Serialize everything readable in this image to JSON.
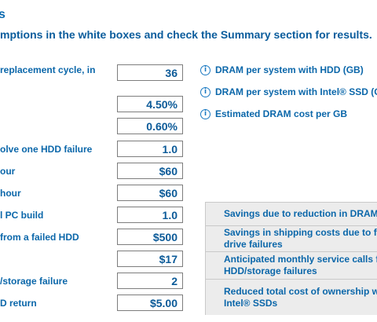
{
  "header": {
    "title": "s",
    "subtitle": "mptions in the white boxes and check the Summary section for results."
  },
  "inputs": [
    {
      "label": "replacement cycle, in",
      "value": "36"
    },
    {
      "label": "",
      "value": "4.50%"
    },
    {
      "label": "",
      "value": "0.60%"
    },
    {
      "label": "olve one HDD failure",
      "value": "1.0"
    },
    {
      "label": "our",
      "value": "$60"
    },
    {
      "label": " hour",
      "value": "$60"
    },
    {
      "label": "l PC build",
      "value": "1.0"
    },
    {
      "label": "from a failed HDD",
      "value": "$500"
    },
    {
      "label": "",
      "value": "$17"
    },
    {
      "label": "/storage failure",
      "value": "2"
    },
    {
      "label": "D return",
      "value": "$5.00"
    }
  ],
  "info_items": [
    {
      "label": "DRAM per system with HDD (GB)",
      "icon": "info-icon"
    },
    {
      "label": "DRAM per system with Intel® SSD (GB",
      "icon": "info-icon"
    },
    {
      "label": "Estimated DRAM cost per GB",
      "icon": "info-icon"
    }
  ],
  "summary": [
    {
      "line1": "Savings due to reduction in DRAM",
      "line2": ""
    },
    {
      "line1": "Savings in shipping costs due to few",
      "line2": "drive failures"
    },
    {
      "line1": "Anticipated monthly service calls fo",
      "line2": "HDD/storage failures"
    },
    {
      "line1": "Reduced total cost of ownership wit",
      "line2": "Intel® SSDs"
    }
  ]
}
